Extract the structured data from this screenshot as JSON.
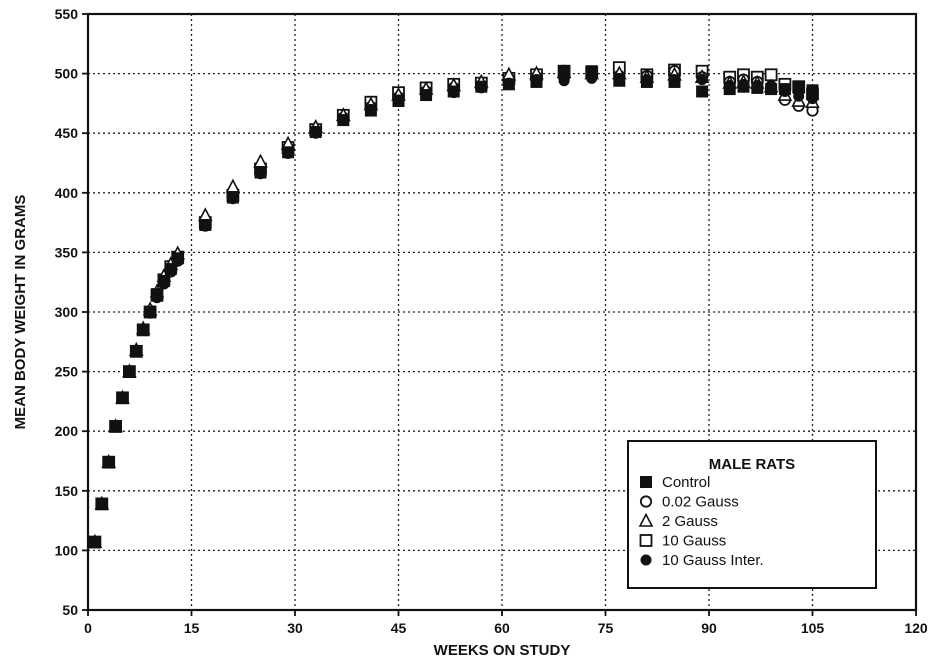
{
  "chart_data": {
    "type": "scatter",
    "title": "",
    "xlabel": "WEEKS ON STUDY",
    "ylabel": "MEAN BODY WEIGHT IN GRAMS",
    "xlim": [
      0,
      120
    ],
    "ylim": [
      50,
      550
    ],
    "xticks": [
      0,
      15,
      30,
      45,
      60,
      75,
      90,
      105,
      120
    ],
    "yticks": [
      50,
      100,
      150,
      200,
      250,
      300,
      350,
      400,
      450,
      500,
      550
    ],
    "grid": true,
    "legend_title": "MALE RATS",
    "legend_position": "lower-right",
    "series": [
      {
        "name": "Control",
        "marker": "filled-square",
        "points": [
          [
            1,
            107
          ],
          [
            2,
            139
          ],
          [
            3,
            174
          ],
          [
            4,
            204
          ],
          [
            5,
            228
          ],
          [
            6,
            250
          ],
          [
            7,
            267
          ],
          [
            8,
            285
          ],
          [
            9,
            300
          ],
          [
            10,
            315
          ],
          [
            11,
            326
          ],
          [
            12,
            336
          ],
          [
            13,
            345
          ],
          [
            17,
            373
          ],
          [
            21,
            396
          ],
          [
            25,
            417
          ],
          [
            29,
            434
          ],
          [
            33,
            451
          ],
          [
            37,
            461
          ],
          [
            41,
            469
          ],
          [
            45,
            477
          ],
          [
            49,
            482
          ],
          [
            53,
            485
          ],
          [
            57,
            489
          ],
          [
            61,
            491
          ],
          [
            65,
            493
          ],
          [
            69,
            501
          ],
          [
            73,
            502
          ],
          [
            77,
            494
          ],
          [
            81,
            493
          ],
          [
            85,
            493
          ],
          [
            89,
            485
          ],
          [
            93,
            487
          ],
          [
            95,
            489
          ],
          [
            97,
            488
          ],
          [
            99,
            487
          ],
          [
            101,
            487
          ],
          [
            103,
            488
          ],
          [
            105,
            486
          ]
        ]
      },
      {
        "name": "0.02 Gauss",
        "marker": "open-circle",
        "points": [
          [
            1,
            107
          ],
          [
            2,
            139
          ],
          [
            3,
            174
          ],
          [
            4,
            204
          ],
          [
            5,
            228
          ],
          [
            6,
            250
          ],
          [
            7,
            267
          ],
          [
            8,
            285
          ],
          [
            9,
            301
          ],
          [
            10,
            313
          ],
          [
            11,
            324
          ],
          [
            12,
            334
          ],
          [
            13,
            343
          ],
          [
            17,
            375
          ],
          [
            21,
            399
          ],
          [
            25,
            421
          ],
          [
            29,
            437
          ],
          [
            33,
            452
          ],
          [
            37,
            463
          ],
          [
            41,
            472
          ],
          [
            45,
            480
          ],
          [
            49,
            485
          ],
          [
            53,
            488
          ],
          [
            57,
            490
          ],
          [
            61,
            494
          ],
          [
            65,
            497
          ],
          [
            69,
            497
          ],
          [
            73,
            499
          ],
          [
            77,
            498
          ],
          [
            81,
            498
          ],
          [
            85,
            502
          ],
          [
            89,
            497
          ],
          [
            93,
            493
          ],
          [
            95,
            495
          ],
          [
            97,
            493
          ],
          [
            99,
            488
          ],
          [
            101,
            478
          ],
          [
            103,
            473
          ],
          [
            105,
            469
          ]
        ]
      },
      {
        "name": "2 Gauss",
        "marker": "open-triangle",
        "points": [
          [
            1,
            107
          ],
          [
            2,
            139
          ],
          [
            3,
            174
          ],
          [
            4,
            204
          ],
          [
            5,
            228
          ],
          [
            6,
            250
          ],
          [
            7,
            268
          ],
          [
            8,
            286
          ],
          [
            9,
            302
          ],
          [
            10,
            317
          ],
          [
            11,
            330
          ],
          [
            12,
            340
          ],
          [
            13,
            349
          ],
          [
            17,
            381
          ],
          [
            21,
            405
          ],
          [
            25,
            426
          ],
          [
            29,
            441
          ],
          [
            33,
            455
          ],
          [
            37,
            465
          ],
          [
            41,
            474
          ],
          [
            45,
            482
          ],
          [
            49,
            487
          ],
          [
            53,
            490
          ],
          [
            57,
            493
          ],
          [
            61,
            499
          ],
          [
            65,
            500
          ],
          [
            69,
            501
          ],
          [
            73,
            500
          ],
          [
            77,
            500
          ],
          [
            81,
            497
          ],
          [
            85,
            499
          ],
          [
            89,
            497
          ],
          [
            93,
            492
          ],
          [
            95,
            493
          ],
          [
            97,
            492
          ],
          [
            99,
            489
          ],
          [
            101,
            482
          ],
          [
            103,
            477
          ],
          [
            105,
            476
          ]
        ]
      },
      {
        "name": "10 Gauss",
        "marker": "open-square",
        "points": [
          [
            1,
            107
          ],
          [
            2,
            139
          ],
          [
            3,
            174
          ],
          [
            4,
            204
          ],
          [
            5,
            228
          ],
          [
            6,
            250
          ],
          [
            7,
            267
          ],
          [
            8,
            285
          ],
          [
            9,
            300
          ],
          [
            10,
            314
          ],
          [
            11,
            327
          ],
          [
            12,
            338
          ],
          [
            13,
            346
          ],
          [
            17,
            375
          ],
          [
            21,
            398
          ],
          [
            25,
            420
          ],
          [
            29,
            438
          ],
          [
            33,
            453
          ],
          [
            37,
            465
          ],
          [
            41,
            476
          ],
          [
            45,
            484
          ],
          [
            49,
            488
          ],
          [
            53,
            491
          ],
          [
            57,
            492
          ],
          [
            61,
            496
          ],
          [
            65,
            499
          ],
          [
            69,
            502
          ],
          [
            73,
            501
          ],
          [
            77,
            505
          ],
          [
            81,
            499
          ],
          [
            85,
            503
          ],
          [
            89,
            502
          ],
          [
            93,
            497
          ],
          [
            95,
            499
          ],
          [
            97,
            497
          ],
          [
            99,
            499
          ],
          [
            101,
            491
          ],
          [
            103,
            489
          ],
          [
            105,
            483
          ]
        ]
      },
      {
        "name": "10 Gauss Inter.",
        "marker": "filled-circle",
        "points": [
          [
            1,
            107
          ],
          [
            2,
            139
          ],
          [
            3,
            174
          ],
          [
            4,
            204
          ],
          [
            5,
            228
          ],
          [
            6,
            250
          ],
          [
            7,
            267
          ],
          [
            8,
            285
          ],
          [
            9,
            299
          ],
          [
            10,
            312
          ],
          [
            11,
            324
          ],
          [
            12,
            335
          ],
          [
            13,
            344
          ],
          [
            17,
            372
          ],
          [
            21,
            395
          ],
          [
            25,
            416
          ],
          [
            29,
            433
          ],
          [
            33,
            450
          ],
          [
            37,
            461
          ],
          [
            41,
            470
          ],
          [
            45,
            478
          ],
          [
            49,
            482
          ],
          [
            53,
            484
          ],
          [
            57,
            488
          ],
          [
            61,
            492
          ],
          [
            65,
            495
          ],
          [
            69,
            494
          ],
          [
            73,
            496
          ],
          [
            77,
            496
          ],
          [
            81,
            495
          ],
          [
            85,
            495
          ],
          [
            89,
            495
          ],
          [
            93,
            490
          ],
          [
            95,
            491
          ],
          [
            97,
            490
          ],
          [
            99,
            490
          ],
          [
            101,
            485
          ],
          [
            103,
            481
          ],
          [
            105,
            479
          ]
        ]
      }
    ]
  }
}
